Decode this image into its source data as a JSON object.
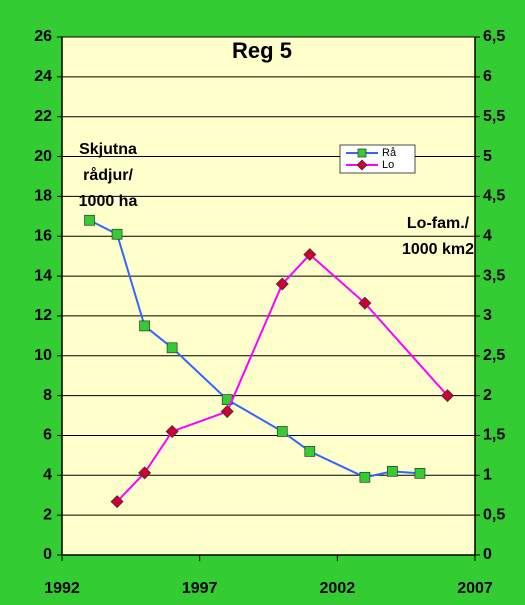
{
  "chart_data": {
    "type": "line",
    "title": "Reg 5",
    "annotations": [
      [
        "Skjutna",
        "rådjur/",
        "1000 ha"
      ],
      [
        "Lo-fam./",
        "1000 km2"
      ]
    ],
    "xlim": [
      1992,
      2007
    ],
    "xticks": [
      1992,
      1997,
      2002,
      2007
    ],
    "ylim": [
      0,
      26
    ],
    "yticks": [
      0,
      2,
      4,
      6,
      8,
      10,
      12,
      14,
      16,
      18,
      20,
      22,
      24,
      26
    ],
    "y2lim": [
      0,
      6.5
    ],
    "y2ticks": [
      0,
      {
        "value": 0.5,
        "label": "0,5"
      },
      1,
      {
        "value": 1.5,
        "label": "1,5"
      },
      2,
      {
        "value": 2.5,
        "label": "2,5"
      },
      3,
      {
        "value": 3.5,
        "label": "3,5"
      },
      4,
      {
        "value": 4.5,
        "label": "4,5"
      },
      5,
      {
        "value": 5.5,
        "label": "5,5"
      },
      6,
      {
        "value": 6.5,
        "label": "6,5"
      }
    ],
    "grid": true,
    "series": [
      {
        "name": "Rå",
        "color": "#3366ff",
        "marker_color": "#33cc33",
        "axis": "y",
        "x": [
          1993,
          1994,
          1995,
          1996,
          1998,
          2000,
          2001,
          2003,
          2004,
          2005
        ],
        "values": [
          16.8,
          16.1,
          11.5,
          10.4,
          7.8,
          6.2,
          5.2,
          3.9,
          4.2,
          4.1
        ]
      },
      {
        "name": "Lo",
        "color": "#ff00ff",
        "marker_color": "#cc0033",
        "axis": "y2",
        "x": [
          1994,
          1995,
          1996,
          1998,
          2000,
          2001,
          2003,
          2006
        ],
        "values": [
          0.67,
          1.03,
          1.55,
          1.8,
          3.4,
          3.77,
          3.16,
          2.0
        ]
      }
    ]
  }
}
